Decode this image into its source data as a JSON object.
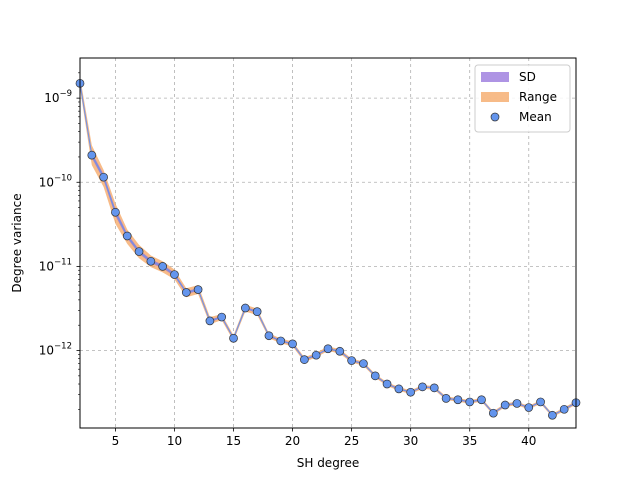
{
  "chart_data": {
    "type": "line",
    "title": "",
    "xlabel": "SH degree",
    "ylabel": "Degree variance",
    "xlim": [
      2,
      44
    ],
    "ylim": [
      1.2e-13,
      3e-09
    ],
    "yscale": "log",
    "grid": true,
    "legend_position": "top-right",
    "x_ticks": [
      5,
      10,
      15,
      20,
      25,
      30,
      35,
      40
    ],
    "x_tick_labels": [
      "5",
      "10",
      "15",
      "20",
      "25",
      "30",
      "35",
      "40"
    ],
    "y_ticks": [
      1e-12,
      1e-11,
      1e-10,
      1e-09
    ],
    "y_tick_labels": [
      {
        "base": "10",
        "exp": "−12"
      },
      {
        "base": "10",
        "exp": "−11"
      },
      {
        "base": "10",
        "exp": "−10"
      },
      {
        "base": "10",
        "exp": "−9"
      }
    ],
    "legend": [
      {
        "label": "SD",
        "kind": "patch",
        "color": "#9370db"
      },
      {
        "label": "Range",
        "kind": "patch",
        "color": "#f4a460"
      },
      {
        "label": "Mean",
        "kind": "marker",
        "color": "#6495ed"
      }
    ],
    "x": [
      2,
      3,
      4,
      5,
      6,
      7,
      8,
      9,
      10,
      11,
      12,
      13,
      14,
      15,
      16,
      17,
      18,
      19,
      20,
      21,
      22,
      23,
      24,
      25,
      26,
      27,
      28,
      29,
      30,
      31,
      32,
      33,
      34,
      35,
      36,
      37,
      38,
      39,
      40,
      41,
      42,
      43,
      44
    ],
    "series": [
      {
        "name": "Mean",
        "color": "#6495ed",
        "values": [
          1.5e-09,
          2.1e-10,
          1.15e-10,
          4.4e-11,
          2.3e-11,
          1.5e-11,
          1.15e-11,
          1e-11,
          8e-12,
          4.9e-12,
          5.3e-12,
          2.25e-12,
          2.5e-12,
          1.4e-12,
          3.2e-12,
          2.9e-12,
          1.5e-12,
          1.3e-12,
          1.2e-12,
          7.8e-13,
          8.8e-13,
          1.05e-12,
          9.8e-13,
          7.6e-13,
          7e-13,
          5e-13,
          4e-13,
          3.5e-13,
          3.2e-13,
          3.7e-13,
          3.6e-13,
          2.7e-13,
          2.6e-13,
          2.45e-13,
          2.6e-13,
          1.8e-13,
          2.25e-13,
          2.35e-13,
          2.1e-13,
          2.45e-13,
          1.7e-13,
          2e-13,
          2.4e-13
        ]
      },
      {
        "name": "Range",
        "color": "#f4a460",
        "lower": [
          1.3e-09,
          1.6e-10,
          8.8e-11,
          3.2e-11,
          1.85e-11,
          1.25e-11,
          9.8e-12,
          8.5e-12,
          7e-12,
          4.3e-12,
          4.7e-12,
          2.05e-12,
          2.3e-12,
          1.3e-12,
          2.9e-12,
          2.65e-12,
          1.4e-12,
          1.22e-12,
          1.12e-12,
          7.3e-13,
          8.3e-13,
          9.9e-13,
          9.2e-13,
          7.2e-13,
          6.6e-13,
          4.75e-13,
          3.8e-13,
          3.32e-13,
          3.04e-13,
          3.5e-13,
          3.42e-13,
          2.57e-13,
          2.47e-13,
          2.33e-13,
          2.47e-13,
          1.71e-13,
          2.14e-13,
          2.24e-13,
          2e-13,
          2.33e-13,
          1.62e-13,
          1.9e-13,
          2.28e-13
        ],
        "upper": [
          1.8e-09,
          2.75e-10,
          1.4e-10,
          5.6e-11,
          2.75e-11,
          1.8e-11,
          1.35e-11,
          1.15e-11,
          9.2e-12,
          5.5e-12,
          6e-12,
          2.5e-12,
          2.7e-12,
          1.52e-12,
          3.5e-12,
          3.15e-12,
          1.6e-12,
          1.39e-12,
          1.28e-12,
          8.3e-13,
          9.4e-13,
          1.12e-12,
          1.04e-12,
          8e-13,
          7.4e-13,
          5.25e-13,
          4.2e-13,
          3.68e-13,
          3.36e-13,
          3.9e-13,
          3.78e-13,
          2.84e-13,
          2.73e-13,
          2.57e-13,
          2.73e-13,
          1.89e-13,
          2.36e-13,
          2.46e-13,
          2.2e-13,
          2.57e-13,
          1.78e-13,
          2.1e-13,
          2.52e-13
        ]
      },
      {
        "name": "SD",
        "color": "#9370db",
        "lower": [
          1.43e-09,
          1.95e-10,
          1.06e-10,
          4e-11,
          2.15e-11,
          1.42e-11,
          1.09e-11,
          9.5e-12,
          7.6e-12,
          4.7e-12,
          5.1e-12,
          2.18e-12,
          2.42e-12,
          1.36e-12,
          3.1e-12,
          2.81e-12,
          1.46e-12,
          1.27e-12,
          1.17e-12,
          7.6e-13,
          8.6e-13,
          1.03e-12,
          9.6e-13,
          7.45e-13,
          6.85e-13,
          4.9e-13,
          3.92e-13,
          3.43e-13,
          3.14e-13,
          3.63e-13,
          3.53e-13,
          2.65e-13,
          2.55e-13,
          2.4e-13,
          2.55e-13,
          1.76e-13,
          2.21e-13,
          2.3e-13,
          2.06e-13,
          2.4e-13,
          1.67e-13,
          1.96e-13,
          2.35e-13
        ],
        "upper": [
          1.57e-09,
          2.25e-10,
          1.24e-10,
          4.8e-11,
          2.45e-11,
          1.58e-11,
          1.21e-11,
          1.05e-11,
          8.4e-12,
          5.1e-12,
          5.5e-12,
          2.32e-12,
          2.58e-12,
          1.44e-12,
          3.3e-12,
          2.99e-12,
          1.54e-12,
          1.33e-12,
          1.23e-12,
          8e-13,
          9e-13,
          1.07e-12,
          1e-12,
          7.75e-13,
          7.15e-13,
          5.1e-13,
          4.08e-13,
          3.57e-13,
          3.26e-13,
          3.77e-13,
          3.67e-13,
          2.75e-13,
          2.65e-13,
          2.5e-13,
          2.65e-13,
          1.84e-13,
          2.29e-13,
          2.4e-13,
          2.14e-13,
          2.5e-13,
          1.73e-13,
          2.04e-13,
          2.45e-13
        ]
      }
    ]
  }
}
